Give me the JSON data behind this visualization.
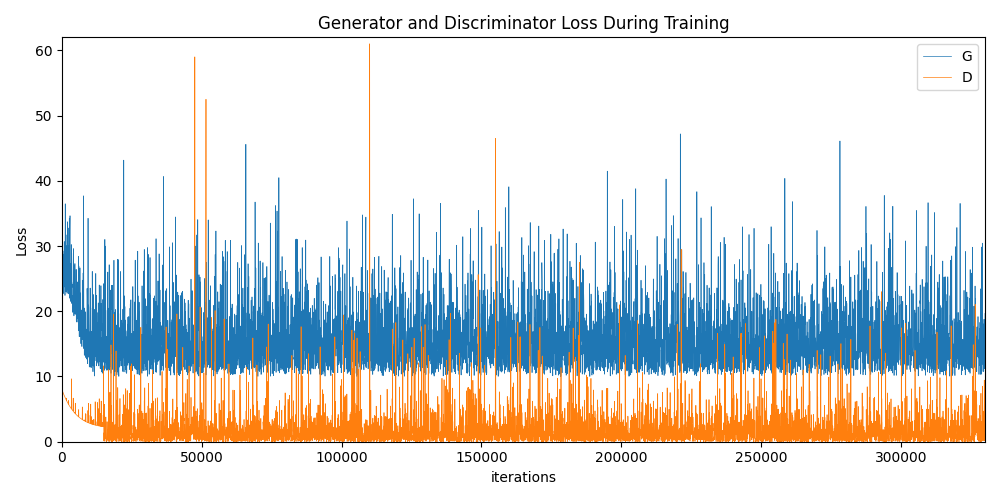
{
  "title": "Generator and Discriminator Loss During Training",
  "xlabel": "iterations",
  "ylabel": "Loss",
  "xlim": [
    0,
    330000
  ],
  "ylim": [
    0,
    62
  ],
  "g_color": "#1f77b4",
  "d_color": "#ff7f0e",
  "g_label": "G",
  "d_label": "D",
  "n_points": 6600,
  "seed": 99,
  "figsize": [
    10,
    5
  ],
  "dpi": 100
}
